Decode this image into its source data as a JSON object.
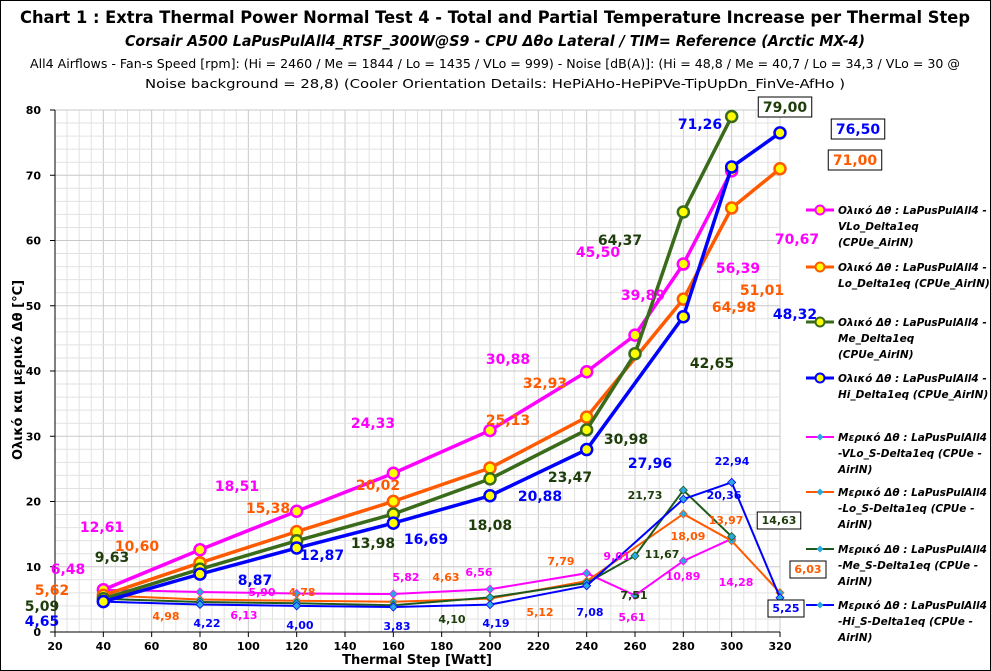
{
  "title": "Chart 1 :  Extra Thermal Power  Normal  Test  4  -  Total and Partial Temperature Increase per Thermal Step",
  "subtitle": "Corsair A500  LaPusPulAll4_RTSF_300W@S9 - CPU  Δθo Lateral / TIM= Reference (Arctic MX-4)",
  "info_line1": "All4  Airflows  -  Fan-s Speed [rpm]:  (Hi = 2460 / Me = 1844 / Lo = 1435 / VLo = 999) - Noise [dB(A)]: (Hi = 48,8 / Me = 40,7 / Lo = 34,3 / VLo = 30 @",
  "info_line2": "Noise background  = 28,8)            (Cooler Orientation Details: HePiAHo-HePiPVe-TipUpDn_FinVe-AfHo )",
  "chart_data": {
    "type": "line",
    "xlabel": "Thermal Step [Watt]",
    "ylabel": "Ολικό και μερικό Δθ [°C]",
    "xlim": [
      20,
      320
    ],
    "ylim": [
      0,
      80
    ],
    "xticks": [
      "20",
      "40",
      "60",
      "80",
      "100",
      "120",
      "140",
      "160",
      "180",
      "200",
      "220",
      "240",
      "260",
      "280",
      "300",
      "320"
    ],
    "yticks": [
      "0",
      "10",
      "20",
      "30",
      "40",
      "50",
      "60",
      "70",
      "80"
    ],
    "grid": true,
    "legend_position": "right",
    "series": [
      {
        "name": "Ολικό Δθ : LaPusPulAll4 - VLo_Delta1eq (CPUe_AirIN)",
        "legend_lines": [
          "Ολικό Δθ : LaPusPulAll4 -",
          "VLo_Delta1eq",
          "(CPUe_AirIN)"
        ],
        "color": "#ff00ff",
        "marker": "circle",
        "x": [
          40,
          80,
          120,
          160,
          200,
          240,
          260,
          280,
          300
        ],
        "y": [
          6.48,
          12.61,
          18.51,
          24.33,
          30.88,
          39.89,
          45.5,
          56.39,
          70.67
        ],
        "labels": [
          "6,48",
          "12,61",
          "18,51",
          "24,33",
          "30,88",
          "39,89",
          "45,50",
          "56,39",
          "70,67"
        ]
      },
      {
        "name": "Ολικό Δθ : LaPusPulAll4 - Lo_Delta1eq (CPUe_AirIN)",
        "legend_lines": [
          "Ολικό Δθ : LaPusPulAll4 -",
          "Lo_Delta1eq  (CPUe_AirIN)"
        ],
        "color": "#ff5a00",
        "marker": "circle",
        "x": [
          40,
          80,
          120,
          160,
          200,
          240,
          280,
          300,
          320
        ],
        "y": [
          5.62,
          10.6,
          15.38,
          20.02,
          25.13,
          32.93,
          51.01,
          64.98,
          71.0
        ],
        "labels": [
          "5,62",
          "10,60",
          "15,38",
          "20,02",
          "25,13",
          "32,93",
          "51,01",
          "64,98",
          "71,00"
        ]
      },
      {
        "name": "Ολικό Δθ : LaPusPulAll4 - Me_Delta1eq (CPUe_AirIN)",
        "legend_lines": [
          "Ολικό Δθ : LaPusPulAll4 -",
          "Me_Delta1eq",
          "(CPUe_AirIN)"
        ],
        "color": "#3a6b1a",
        "marker": "circle",
        "x": [
          40,
          80,
          120,
          160,
          200,
          240,
          260,
          280,
          300
        ],
        "y": [
          5.09,
          9.63,
          13.98,
          18.08,
          23.47,
          30.98,
          42.65,
          64.37,
          79.0
        ],
        "labels": [
          "5,09",
          "9,63",
          "13,98",
          "18,08",
          "23,47",
          "30,98",
          "42,65",
          "64,37",
          "79,00"
        ]
      },
      {
        "name": "Ολικό Δθ : LaPusPulAll4 - Hi_Delta1eq (CPUe_AirIN)",
        "legend_lines": [
          "Ολικό Δθ : LaPusPulAll4 -",
          "Hi_Delta1eq  (CPUe_AirIN)"
        ],
        "color": "#0000ff",
        "marker": "circle",
        "x": [
          40,
          80,
          120,
          160,
          200,
          240,
          280,
          300,
          320
        ],
        "y": [
          4.65,
          8.87,
          12.87,
          16.69,
          20.88,
          27.96,
          48.32,
          71.26,
          76.5
        ],
        "labels": [
          "4,65",
          "8,87",
          "12,87",
          "16,69",
          "20,88",
          "27,96",
          "48,32",
          "71,26",
          "76,50"
        ]
      },
      {
        "name": "Μερικό Δθ : LaPusPulAll4 -VLo_S-Delta1eq (CPUe - AirIN)",
        "legend_lines": [
          "Μερικό Δθ : LaPusPulAll4",
          "-VLo_S-Delta1eq  (CPUe -",
          "AirIN)"
        ],
        "color": "#ff00ff",
        "marker": "diamond",
        "x": [
          40,
          80,
          120,
          160,
          200,
          240,
          260,
          280,
          300
        ],
        "y": [
          6.48,
          6.13,
          5.9,
          5.82,
          6.56,
          9.01,
          5.61,
          10.89,
          14.28
        ],
        "labels": [
          null,
          "6,13",
          "5,90",
          "5,82",
          "6,56",
          "9,01",
          "5,61",
          "10,89",
          "14,28"
        ]
      },
      {
        "name": "Μερικό Δθ : LaPusPulAll4 -Lo_S-Delta1eq (CPUe - AirIN)",
        "legend_lines": [
          "Μερικό Δθ : LaPusPulAll4",
          "-Lo_S-Delta1eq  (CPUe -",
          "AirIN)"
        ],
        "color": "#ff5a00",
        "marker": "diamond",
        "x": [
          40,
          80,
          120,
          160,
          200,
          240,
          280,
          300,
          320
        ],
        "y": [
          5.62,
          4.98,
          4.78,
          4.63,
          5.12,
          7.79,
          18.09,
          13.97,
          6.03
        ],
        "labels": [
          null,
          "4,98",
          "4,78",
          "4,63",
          "5,12",
          "7,79",
          "18,09",
          "13,97",
          "6,03"
        ]
      },
      {
        "name": "Μερικό Δθ : LaPusPulAll4 -Me_S-Delta1eq (CPUe - AirIN)",
        "legend_lines": [
          "Μερικό Δθ : LaPusPulAll4",
          "-Me_S-Delta1eq  (CPUe -",
          "AirIN)"
        ],
        "color": "#1e5a1e",
        "marker": "diamond",
        "x": [
          40,
          80,
          120,
          160,
          200,
          240,
          260,
          280,
          300
        ],
        "y": [
          5.09,
          4.6,
          4.4,
          4.1,
          5.3,
          7.51,
          11.67,
          21.73,
          14.63
        ],
        "labels": [
          null,
          null,
          null,
          "4,10",
          null,
          "7,51",
          "11,67",
          "21,73",
          "14,63"
        ]
      },
      {
        "name": "Μερικό Δθ : LaPusPulAll4 -Hi_S-Delta1eq (CPUe - AirIN)",
        "legend_lines": [
          "Μερικό Δθ : LaPusPulAll4",
          "-Hi_S-Delta1eq  (CPUe -",
          "AirIN)"
        ],
        "color": "#0000ff",
        "marker": "diamond",
        "x": [
          40,
          80,
          120,
          160,
          200,
          240,
          280,
          300,
          320
        ],
        "y": [
          4.65,
          4.22,
          4.0,
          3.83,
          4.19,
          7.08,
          20.36,
          22.94,
          5.25
        ],
        "labels": [
          null,
          "4,22",
          "4,00",
          "3,83",
          "4,19",
          "7,08",
          "20,36",
          "22,94",
          "5,25"
        ]
      }
    ]
  }
}
